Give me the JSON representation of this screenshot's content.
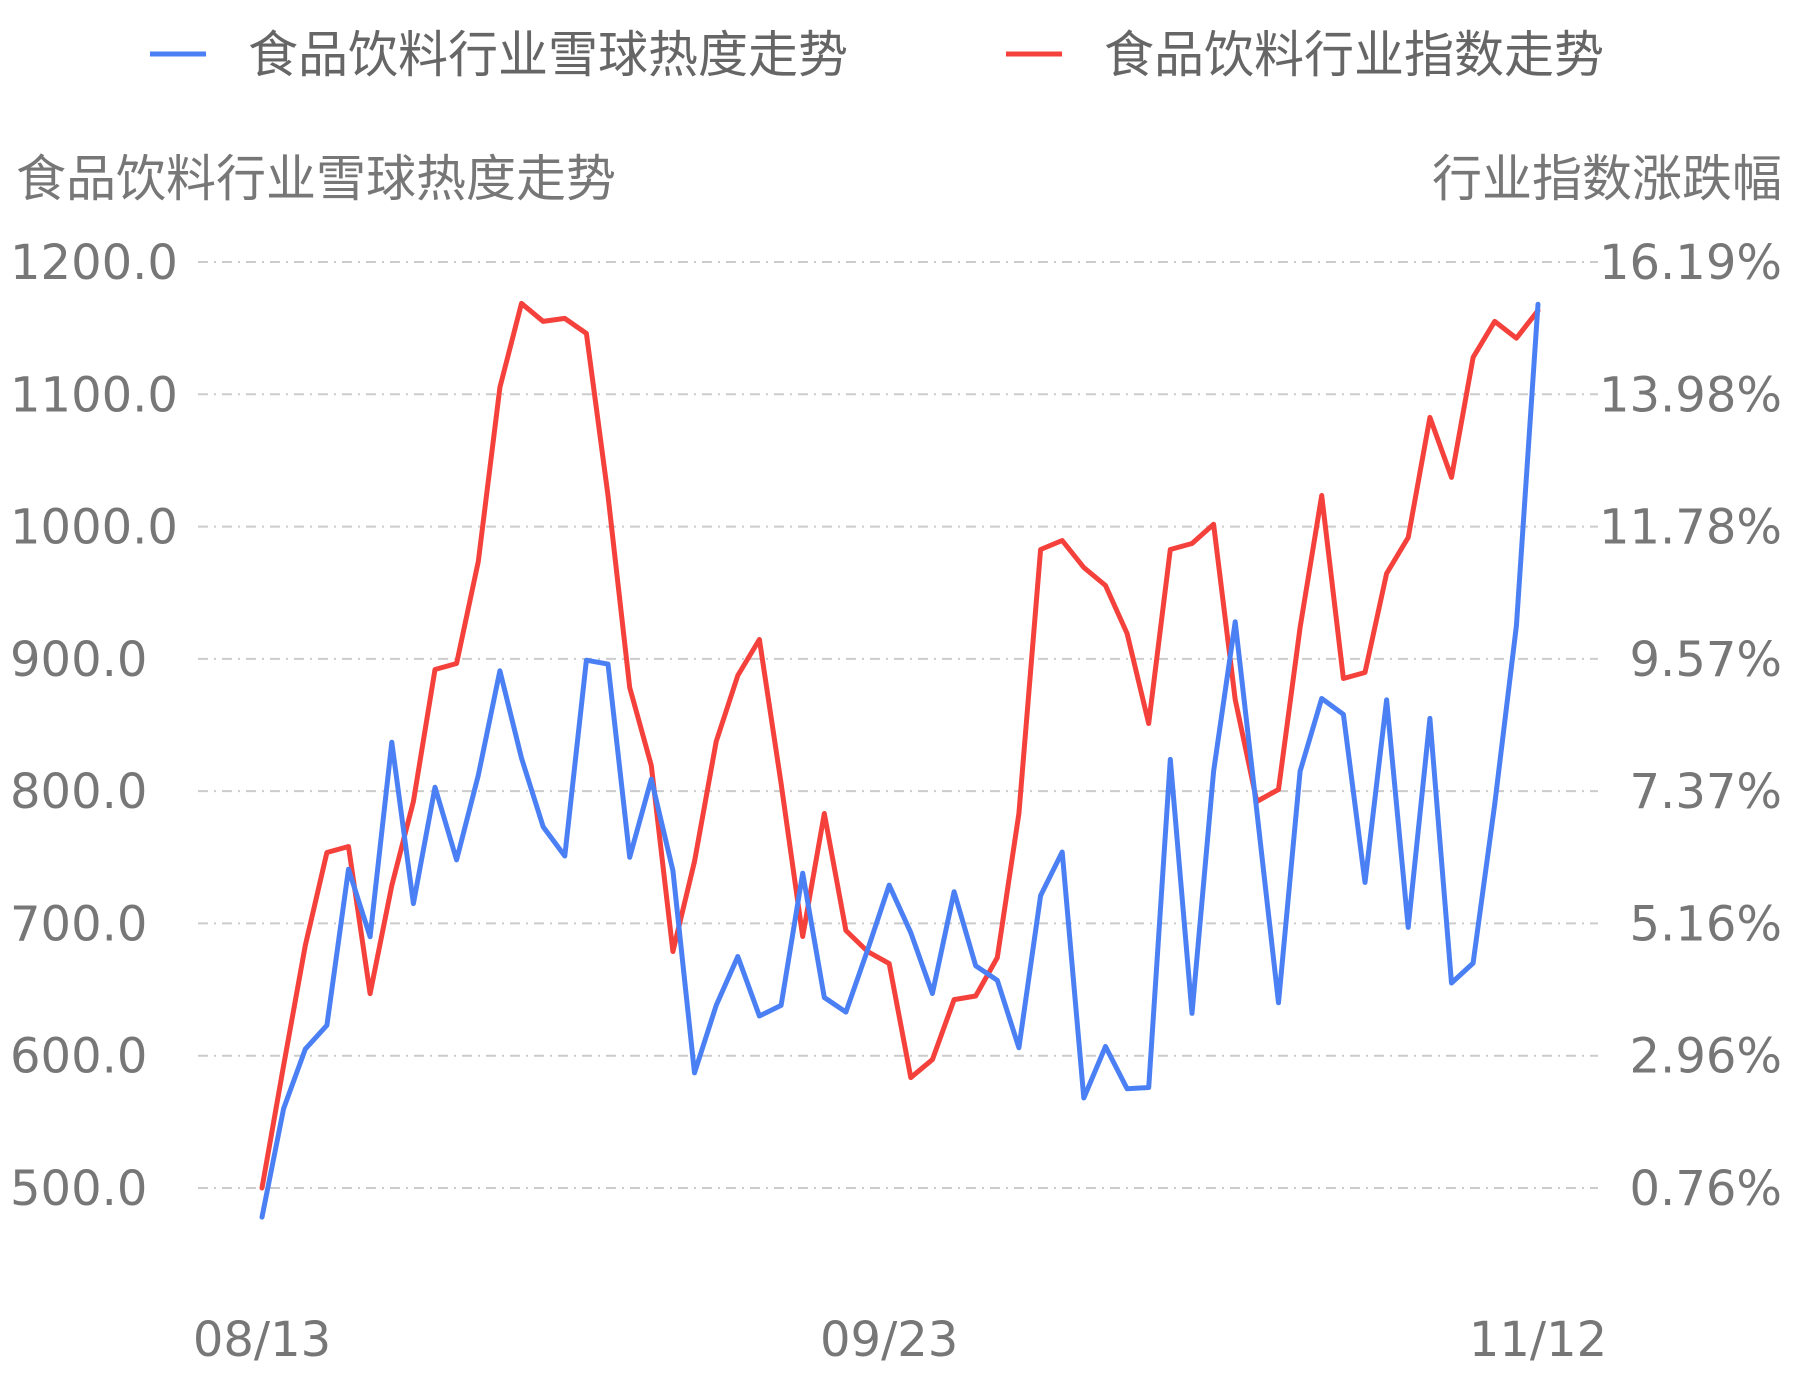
{
  "chart_data": {
    "type": "line",
    "legend_position": "top",
    "grid": true,
    "left_axis": {
      "title": "食品饮料行业雪球热度走势",
      "ticks": [
        "500.0",
        "600.0",
        "700.0",
        "800.0",
        "900.0",
        "1000.0",
        "1100.0",
        "1200.0"
      ],
      "ylim": [
        500,
        1200
      ]
    },
    "right_axis": {
      "title": "行业指数涨跌幅",
      "ticks": [
        "0.76%",
        "2.96%",
        "5.16%",
        "7.37%",
        "9.57%",
        "11.78%",
        "13.98%",
        "16.19%"
      ],
      "ylim": [
        0.76,
        16.19
      ]
    },
    "x_ticks": [
      {
        "label": "08/13",
        "index": 0
      },
      {
        "label": "09/23",
        "index": 29
      },
      {
        "label": "11/12",
        "index": 59
      }
    ],
    "series": [
      {
        "name": "食品饮料行业雪球热度走势",
        "color": "#4b80f5",
        "axis": "left",
        "values": [
          478,
          560,
          605,
          623,
          741,
          690,
          837,
          715,
          803,
          748,
          812,
          891,
          825,
          773,
          751,
          899,
          896,
          750,
          809,
          740,
          587,
          638,
          675,
          630,
          638,
          738,
          644,
          633,
          680,
          729,
          693,
          647,
          724,
          668,
          657,
          606,
          721,
          754,
          568,
          607,
          575,
          576,
          824,
          632,
          815,
          928,
          785,
          640,
          815,
          870,
          858,
          731,
          869,
          697,
          855,
          655,
          670,
          790,
          925,
          1168
        ]
      },
      {
        "name": "食品饮料行业指数走势",
        "color": "#f5413c",
        "axis": "right",
        "values": [
          0.76,
          2.8,
          4.8,
          6.35,
          6.45,
          4.0,
          5.8,
          7.2,
          9.4,
          9.5,
          11.2,
          14.1,
          15.5,
          15.2,
          15.25,
          15.0,
          12.3,
          9.1,
          7.8,
          4.7,
          6.2,
          8.2,
          9.3,
          9.9,
          7.5,
          4.95,
          7.0,
          5.05,
          4.7,
          4.5,
          2.6,
          2.9,
          3.9,
          3.96,
          4.6,
          7.0,
          11.4,
          11.55,
          11.1,
          10.8,
          10.0,
          8.5,
          11.4,
          11.5,
          11.82,
          8.9,
          7.2,
          7.4,
          10.1,
          12.3,
          9.25,
          9.35,
          11.0,
          11.6,
          13.6,
          12.6,
          14.6,
          15.2,
          14.92,
          15.38
        ]
      }
    ]
  }
}
